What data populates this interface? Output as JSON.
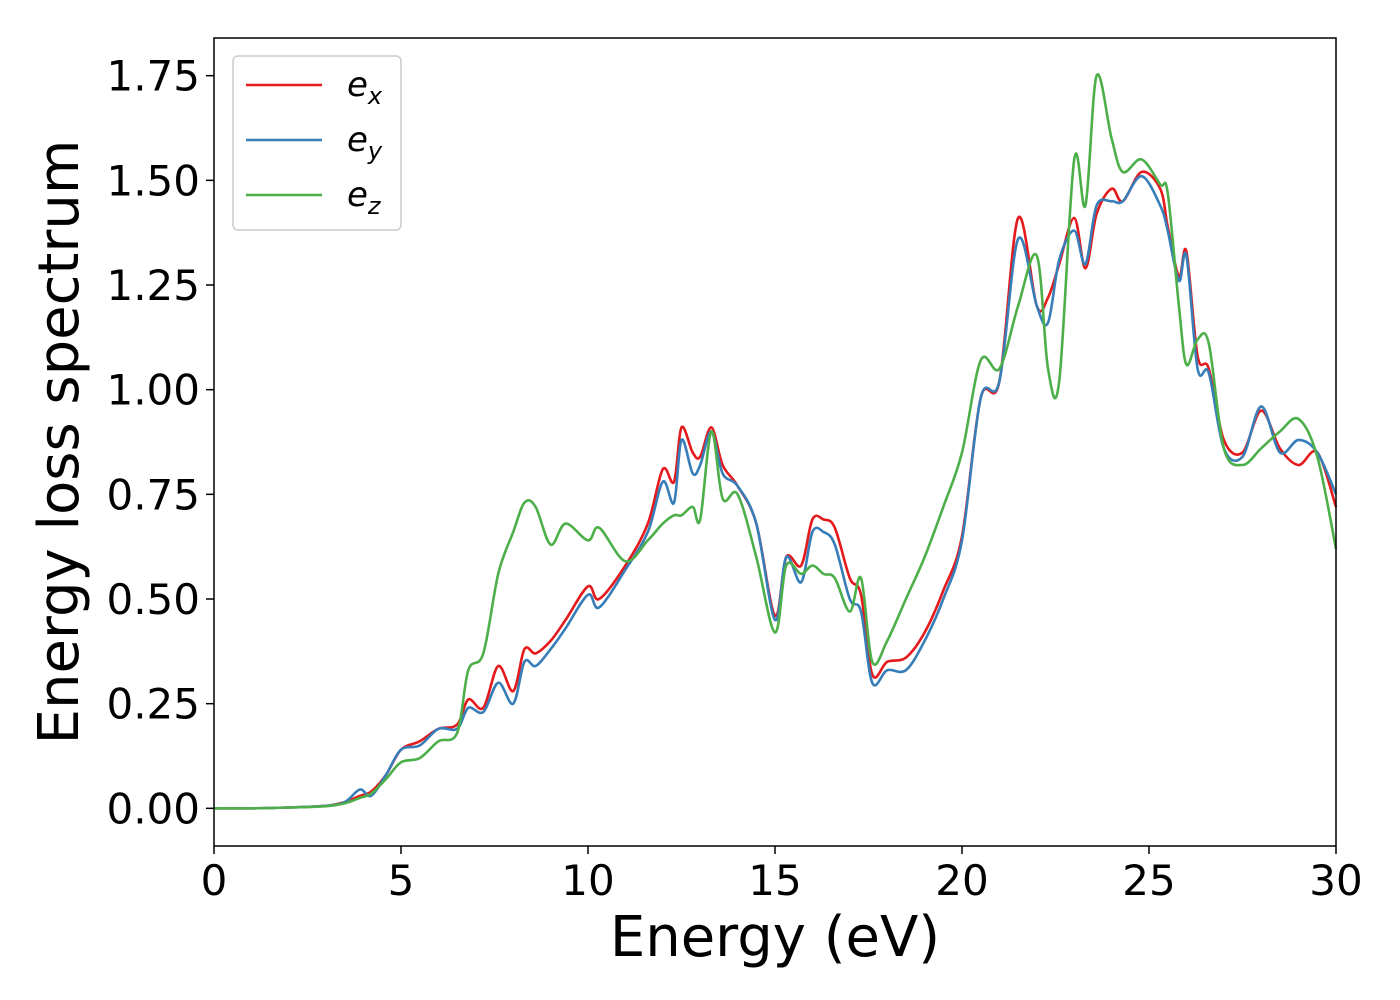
{
  "chart_data": {
    "type": "line",
    "xlabel": "Energy (eV)",
    "ylabel": "Energy loss spectrum",
    "xlim": [
      0,
      30
    ],
    "ylim": [
      -0.09,
      1.84
    ],
    "xticks": [
      0,
      5,
      10,
      15,
      20,
      25,
      30
    ],
    "xtick_labels": [
      "0",
      "5",
      "10",
      "15",
      "20",
      "25",
      "30"
    ],
    "yticks": [
      0,
      0.25,
      0.5,
      0.75,
      1.0,
      1.25,
      1.5,
      1.75
    ],
    "ytick_labels": [
      "0.00",
      "0.25",
      "0.50",
      "0.75",
      "1.00",
      "1.25",
      "1.50",
      "1.75"
    ],
    "grid": false,
    "legend_position": "top-left",
    "series": [
      {
        "name": "e",
        "subscript": "x",
        "color": "#e41a1c",
        "x": [
          0,
          1,
          2,
          3,
          3.5,
          3.9,
          4.2,
          4.6,
          5,
          5.5,
          6,
          6.5,
          6.8,
          7.2,
          7.6,
          8.0,
          8.3,
          8.6,
          9.0,
          9.4,
          10.0,
          10.3,
          11.0,
          11.6,
          12.0,
          12.3,
          12.5,
          12.8,
          13.0,
          13.3,
          13.6,
          14.0,
          14.5,
          15.0,
          15.3,
          15.7,
          16.0,
          16.3,
          16.6,
          17.0,
          17.3,
          17.6,
          18.0,
          18.5,
          19.0,
          19.5,
          20.0,
          20.5,
          21.0,
          21.5,
          22.0,
          22.3,
          22.6,
          23.0,
          23.3,
          23.6,
          24.0,
          24.3,
          24.8,
          25.3,
          25.5,
          25.8,
          26.0,
          26.3,
          26.6,
          27.0,
          27.5,
          28.0,
          28.5,
          29.0,
          29.5,
          30.0
        ],
        "y": [
          0,
          0,
          0.002,
          0.006,
          0.015,
          0.03,
          0.04,
          0.08,
          0.14,
          0.16,
          0.19,
          0.2,
          0.26,
          0.24,
          0.34,
          0.28,
          0.38,
          0.37,
          0.4,
          0.45,
          0.53,
          0.5,
          0.58,
          0.68,
          0.81,
          0.78,
          0.91,
          0.85,
          0.84,
          0.91,
          0.82,
          0.77,
          0.68,
          0.46,
          0.6,
          0.58,
          0.69,
          0.69,
          0.67,
          0.55,
          0.51,
          0.32,
          0.35,
          0.36,
          0.42,
          0.52,
          0.65,
          0.98,
          1.02,
          1.41,
          1.2,
          1.22,
          1.3,
          1.41,
          1.29,
          1.42,
          1.48,
          1.45,
          1.52,
          1.48,
          1.39,
          1.27,
          1.33,
          1.08,
          1.05,
          0.88,
          0.85,
          0.95,
          0.86,
          0.82,
          0.85,
          0.72
        ]
      },
      {
        "name": "e",
        "subscript": "y",
        "color": "#377eb8",
        "x": [
          0,
          1,
          2,
          3,
          3.5,
          3.9,
          4.2,
          4.6,
          5,
          5.5,
          6,
          6.5,
          6.8,
          7.2,
          7.6,
          8.0,
          8.3,
          8.6,
          9.0,
          9.4,
          10.0,
          10.3,
          11.0,
          11.6,
          12.0,
          12.3,
          12.5,
          12.8,
          13.0,
          13.3,
          13.6,
          14.0,
          14.5,
          15.0,
          15.3,
          15.7,
          16.0,
          16.3,
          16.6,
          17.0,
          17.3,
          17.6,
          18.0,
          18.5,
          19.0,
          19.5,
          20.0,
          20.5,
          21.0,
          21.5,
          22.0,
          22.3,
          22.6,
          23.0,
          23.3,
          23.6,
          24.0,
          24.3,
          24.8,
          25.3,
          25.5,
          25.8,
          26.0,
          26.3,
          26.6,
          27.0,
          27.5,
          28.0,
          28.5,
          29.0,
          29.5,
          30.0
        ],
        "y": [
          0,
          0,
          0.002,
          0.006,
          0.015,
          0.045,
          0.03,
          0.08,
          0.14,
          0.15,
          0.19,
          0.19,
          0.24,
          0.23,
          0.3,
          0.25,
          0.35,
          0.34,
          0.38,
          0.43,
          0.51,
          0.48,
          0.57,
          0.66,
          0.78,
          0.73,
          0.88,
          0.8,
          0.82,
          0.9,
          0.8,
          0.77,
          0.68,
          0.45,
          0.6,
          0.54,
          0.66,
          0.66,
          0.63,
          0.5,
          0.47,
          0.3,
          0.33,
          0.33,
          0.4,
          0.5,
          0.64,
          0.98,
          1.02,
          1.36,
          1.2,
          1.16,
          1.31,
          1.38,
          1.3,
          1.44,
          1.45,
          1.45,
          1.51,
          1.44,
          1.38,
          1.26,
          1.32,
          1.05,
          1.04,
          0.86,
          0.84,
          0.96,
          0.85,
          0.88,
          0.85,
          0.75
        ]
      },
      {
        "name": "e",
        "subscript": "z",
        "color": "#4daf4a",
        "x": [
          0,
          1,
          2,
          3,
          3.5,
          3.9,
          4.2,
          4.6,
          5,
          5.5,
          6,
          6.5,
          6.8,
          7.2,
          7.6,
          8.0,
          8.3,
          8.6,
          9.0,
          9.4,
          10.0,
          10.3,
          11.0,
          11.6,
          12.0,
          12.3,
          12.5,
          12.8,
          13.0,
          13.3,
          13.6,
          14.0,
          14.5,
          15.0,
          15.3,
          15.7,
          16.0,
          16.3,
          16.6,
          17.0,
          17.3,
          17.6,
          18.0,
          18.5,
          19.0,
          19.5,
          20.0,
          20.5,
          21.0,
          21.5,
          22.0,
          22.3,
          22.6,
          23.0,
          23.3,
          23.6,
          24.0,
          24.3,
          24.8,
          25.3,
          25.5,
          25.8,
          26.0,
          26.3,
          26.6,
          27.0,
          27.5,
          28.0,
          28.5,
          29.0,
          29.5,
          30.0
        ],
        "y": [
          0,
          0,
          0.002,
          0.005,
          0.012,
          0.025,
          0.035,
          0.07,
          0.11,
          0.12,
          0.16,
          0.18,
          0.33,
          0.37,
          0.56,
          0.66,
          0.73,
          0.72,
          0.63,
          0.68,
          0.64,
          0.67,
          0.59,
          0.64,
          0.68,
          0.7,
          0.7,
          0.72,
          0.69,
          0.9,
          0.74,
          0.75,
          0.6,
          0.42,
          0.58,
          0.56,
          0.58,
          0.56,
          0.55,
          0.47,
          0.55,
          0.35,
          0.4,
          0.5,
          0.6,
          0.72,
          0.85,
          1.07,
          1.05,
          1.2,
          1.32,
          1.05,
          1.02,
          1.55,
          1.44,
          1.75,
          1.6,
          1.52,
          1.55,
          1.49,
          1.47,
          1.2,
          1.06,
          1.12,
          1.11,
          0.86,
          0.82,
          0.86,
          0.9,
          0.93,
          0.84,
          0.62
        ]
      }
    ]
  }
}
